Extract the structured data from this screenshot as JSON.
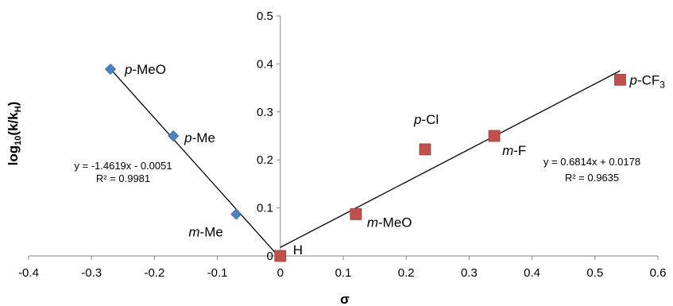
{
  "chart_data": {
    "type": "scatter",
    "xlabel": "σ",
    "ylabel": {
      "main": "log",
      "sub10": "10",
      "paren": "(k/k",
      "subH": "H",
      "close": ")"
    },
    "xlim": [
      -0.4,
      0.6
    ],
    "ylim": [
      0,
      0.5
    ],
    "x_ticks": [
      "-0.4",
      "-0.3",
      "-0.2",
      "-0.1",
      "0",
      "0.1",
      "0.2",
      "0.3",
      "0.4",
      "0.5",
      "0.6"
    ],
    "y_ticks": [
      "0",
      "0.1",
      "0.2",
      "0.3",
      "0.4",
      "0.5"
    ],
    "grid": false,
    "legend": "none",
    "series": [
      {
        "marker": "diamond",
        "color": "#4f81bd",
        "points": [
          {
            "x": -0.27,
            "y": 0.389,
            "label_pre": "p",
            "label_post": "-MeO"
          },
          {
            "x": -0.17,
            "y": 0.25,
            "label_pre": "p",
            "label_post": "-Me"
          },
          {
            "x": -0.07,
            "y": 0.087,
            "label_pre": "m",
            "label_post": "-Me"
          }
        ],
        "trendline": {
          "slope": -1.4619,
          "intercept": -0.0051,
          "x_range": [
            -0.27,
            0.0
          ]
        },
        "equation": "y = -1.4619x - 0.0051",
        "r2": "R² = 0.9981"
      },
      {
        "marker": "square",
        "color": "#c0504d",
        "points": [
          {
            "x": 0.0,
            "y": 0.0,
            "label_pre": "",
            "label_post": "H"
          },
          {
            "x": 0.12,
            "y": 0.087,
            "label_pre": "m",
            "label_post": "-MeO"
          },
          {
            "x": 0.23,
            "y": 0.222,
            "label_pre": "p",
            "label_post": "-Cl"
          },
          {
            "x": 0.34,
            "y": 0.25,
            "label_pre": "m",
            "label_post": "-F"
          },
          {
            "x": 0.54,
            "y": 0.367,
            "label_pre": "p",
            "label_post": "-CF",
            "label_sub": "3"
          }
        ],
        "trendline": {
          "slope": 0.6814,
          "intercept": 0.0178,
          "x_range": [
            0.0,
            0.54
          ]
        },
        "equation": "y = 0.6814x + 0.0178",
        "r2": "R² = 0.9635"
      }
    ]
  }
}
